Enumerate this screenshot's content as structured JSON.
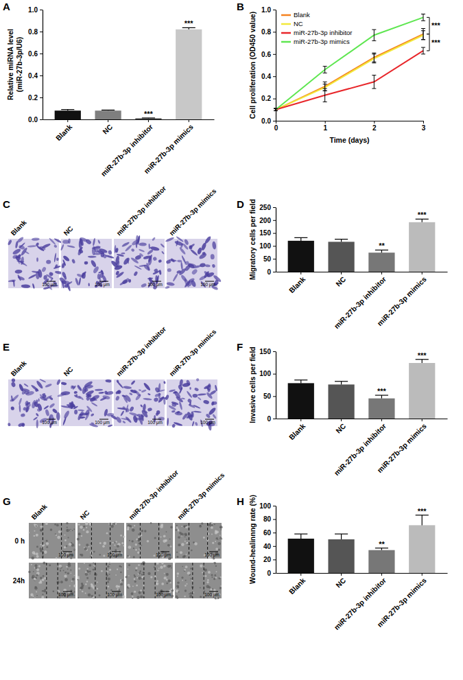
{
  "chart_data": [
    {
      "panel": "A",
      "type": "bar",
      "ylabel": [
        "Relative  miRNA level",
        "(miR-27b-3p/U6)"
      ],
      "categories": [
        "Blank",
        "NC",
        "miR-27b-3p inhibitor",
        "miR-27b-3p mimics"
      ],
      "values": [
        0.08,
        0.08,
        0.01,
        0.82
      ],
      "errors": [
        0.01,
        0.005,
        0.003,
        0.015
      ],
      "colors": [
        "#111111",
        "#7f7f7f",
        "#555555",
        "#c8c8c8"
      ],
      "significance": [
        null,
        null,
        "***",
        "***"
      ],
      "ylim": [
        0,
        1
      ],
      "yticks": [
        {
          "value": 0,
          "label": "0.0"
        },
        {
          "value": 0.2,
          "label": "0.2"
        },
        {
          "value": 0.4,
          "label": "0.4"
        },
        {
          "value": 0.6,
          "label": "0.6"
        },
        {
          "value": 0.8,
          "label": "0.8"
        },
        {
          "value": 1,
          "label": "1.0"
        }
      ]
    },
    {
      "panel": "B",
      "type": "line",
      "xlabel": "Time (days)",
      "ylabel": "Cell proliferation (OD450 value)",
      "x": [
        0,
        1,
        2,
        3
      ],
      "xlim": [
        0,
        3
      ],
      "xticks": [
        0,
        1,
        2,
        3
      ],
      "ylim": [
        0,
        1
      ],
      "yticks": [
        {
          "value": 0,
          "label": "0.0"
        },
        {
          "value": 0.2,
          "label": "0.2"
        },
        {
          "value": 0.4,
          "label": "0.4"
        },
        {
          "value": 0.6,
          "label": "0.6"
        },
        {
          "value": 0.8,
          "label": "0.8"
        },
        {
          "value": 1,
          "label": "1.0"
        }
      ],
      "legend": "upper left",
      "series": [
        {
          "name": "Blank",
          "color": "#f5821f",
          "values": [
            0.1,
            0.31,
            0.57,
            0.78
          ],
          "errors": [
            0.01,
            0.04,
            0.04,
            0.05
          ]
        },
        {
          "name": "NC",
          "color": "#f2e83a",
          "values": [
            0.1,
            0.3,
            0.56,
            0.77
          ],
          "errors": [
            0.01,
            0.03,
            0.04,
            0.04
          ]
        },
        {
          "name": "miR-27b-3p inhibitor",
          "color": "#e8262a",
          "values": [
            0.1,
            0.23,
            0.35,
            0.63
          ],
          "errors": [
            0.01,
            0.06,
            0.06,
            0.03
          ]
        },
        {
          "name": "miR-27b-3p mimics",
          "color": "#5ee650",
          "values": [
            0.1,
            0.46,
            0.77,
            0.93
          ],
          "errors": [
            0.01,
            0.03,
            0.05,
            0.03
          ]
        }
      ],
      "annotations": [
        {
          "text": "***",
          "between": [
            "miR-27b-3p mimics",
            "Blank"
          ]
        },
        {
          "text": "***",
          "between": [
            "Blank",
            "miR-27b-3p inhibitor"
          ]
        }
      ]
    },
    {
      "panel": "D",
      "type": "bar",
      "ylabel": [
        "Migratory cells per field"
      ],
      "categories": [
        "Blank",
        "NC",
        "miR-27b-3p inhibitor",
        "miR-27b-3p mimics"
      ],
      "values": [
        120,
        116,
        74,
        192
      ],
      "errors": [
        12,
        10,
        10,
        12
      ],
      "colors": [
        "#111111",
        "#555555",
        "#777777",
        "#bbbbbb"
      ],
      "significance": [
        null,
        null,
        "**",
        "***"
      ],
      "ylim": [
        0,
        250
      ],
      "yticks": [
        0,
        50,
        100,
        150,
        200,
        250
      ]
    },
    {
      "panel": "F",
      "type": "bar",
      "ylabel": [
        "Invasive cells per field"
      ],
      "categories": [
        "Blank",
        "NC",
        "miR-27b-3p inhibitor",
        "miR-27b-3p mimics"
      ],
      "values": [
        79,
        76,
        45,
        124
      ],
      "errors": [
        7,
        7,
        7,
        8
      ],
      "colors": [
        "#111111",
        "#555555",
        "#777777",
        "#bbbbbb"
      ],
      "significance": [
        null,
        null,
        "***",
        "***"
      ],
      "ylim": [
        0,
        150
      ],
      "yticks": [
        0,
        50,
        100,
        150
      ]
    },
    {
      "panel": "H",
      "type": "bar",
      "ylabel": [
        "Wound-healinnng rate (%)"
      ],
      "categories": [
        "Blank",
        "NC",
        "miR-27b-3p inhibitor",
        "miR-27b-3p mimics"
      ],
      "values": [
        51,
        50,
        34,
        71
      ],
      "errors": [
        7,
        8,
        3,
        15
      ],
      "colors": [
        "#111111",
        "#555555",
        "#777777",
        "#bbbbbb"
      ],
      "significance": [
        null,
        null,
        "**",
        "***"
      ],
      "ylim": [
        0,
        100
      ],
      "yticks": [
        0,
        20,
        40,
        60,
        80,
        100
      ]
    }
  ],
  "image_panels": [
    {
      "panel": "C",
      "columns": [
        "Blank",
        "NC",
        "miR-27b-3p inhibitor",
        "miR-27b-3p mimics"
      ],
      "scale_bar": "100 μm"
    },
    {
      "panel": "E",
      "columns": [
        "Blank",
        "NC",
        "miR-27b-3p inhibitor",
        "miR-27b-3p mimics"
      ],
      "scale_bar": "100 μm"
    },
    {
      "panel": "G",
      "columns": [
        "Blank",
        "NC",
        "miR-27b-3p inhibitor",
        "miR-27b-3p mimics"
      ],
      "rows": [
        "0 h",
        "24h"
      ],
      "scale_bar": "100 μm"
    }
  ]
}
